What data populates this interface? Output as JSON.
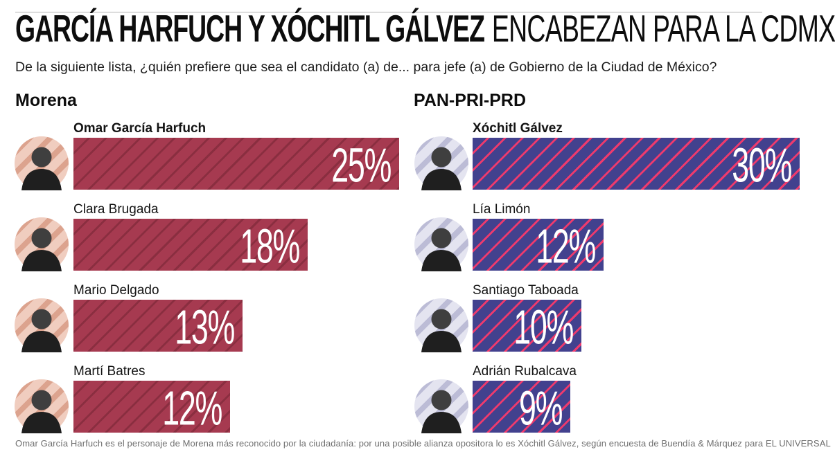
{
  "header": {
    "title_bold": "GARCÍA HARFUCH Y XÓCHITL GÁLVEZ",
    "title_light": "ENCABEZAN PARA LA CDMX",
    "subtitle": "De la siguiente lista, ¿quién prefiere que sea el candidato (a) de... para jefe (a) de Gobierno de la Ciudad de México?"
  },
  "footer": {
    "note": "Omar García Harfuch es el personaje de Morena más reconocido por la ciudadanía: por una posible alianza opositora lo es Xóchitl Gálvez, según encuesta de Buendía & Márquez para EL UNIVERSAL"
  },
  "chart_data": {
    "type": "bar",
    "orientation": "horizontal",
    "unit": "%",
    "title": "GARCÍA HARFUCH Y XÓCHITL GÁLVEZ ENCABEZAN PARA LA CDMX",
    "subtitle": "De la siguiente lista, ¿quién prefiere que sea el candidato (a) de... para jefe (a) de Gobierno de la Ciudad de México?",
    "legend_position": "none",
    "grid": false,
    "groups": [
      {
        "party": "Morena",
        "bar_color": "#a63a50",
        "stripe_color": "#8a2e40",
        "avatar_bg": "#f0cdbf",
        "avatar_stripe": "#dca38e",
        "candidates": [
          {
            "name": "Omar García Harfuch",
            "value": 25,
            "leader": true
          },
          {
            "name": "Clara Brugada",
            "value": 18,
            "leader": false
          },
          {
            "name": "Mario Delgado",
            "value": 13,
            "leader": false
          },
          {
            "name": "Martí Batres",
            "value": 12,
            "leader": false
          }
        ]
      },
      {
        "party": "PAN-PRI-PRD",
        "bar_color": "#42418e",
        "stripe_color": "#ef3a6d",
        "avatar_bg": "#e4e4f0",
        "avatar_stripe": "#bcbcd6",
        "candidates": [
          {
            "name": "Xóchitl Gálvez",
            "value": 30,
            "leader": true
          },
          {
            "name": "Lía Limón",
            "value": 12,
            "leader": false
          },
          {
            "name": "Santiago Taboada",
            "value": 10,
            "leader": false
          },
          {
            "name": "Adrián Rubalcava",
            "value": 9,
            "leader": false
          }
        ]
      }
    ]
  }
}
